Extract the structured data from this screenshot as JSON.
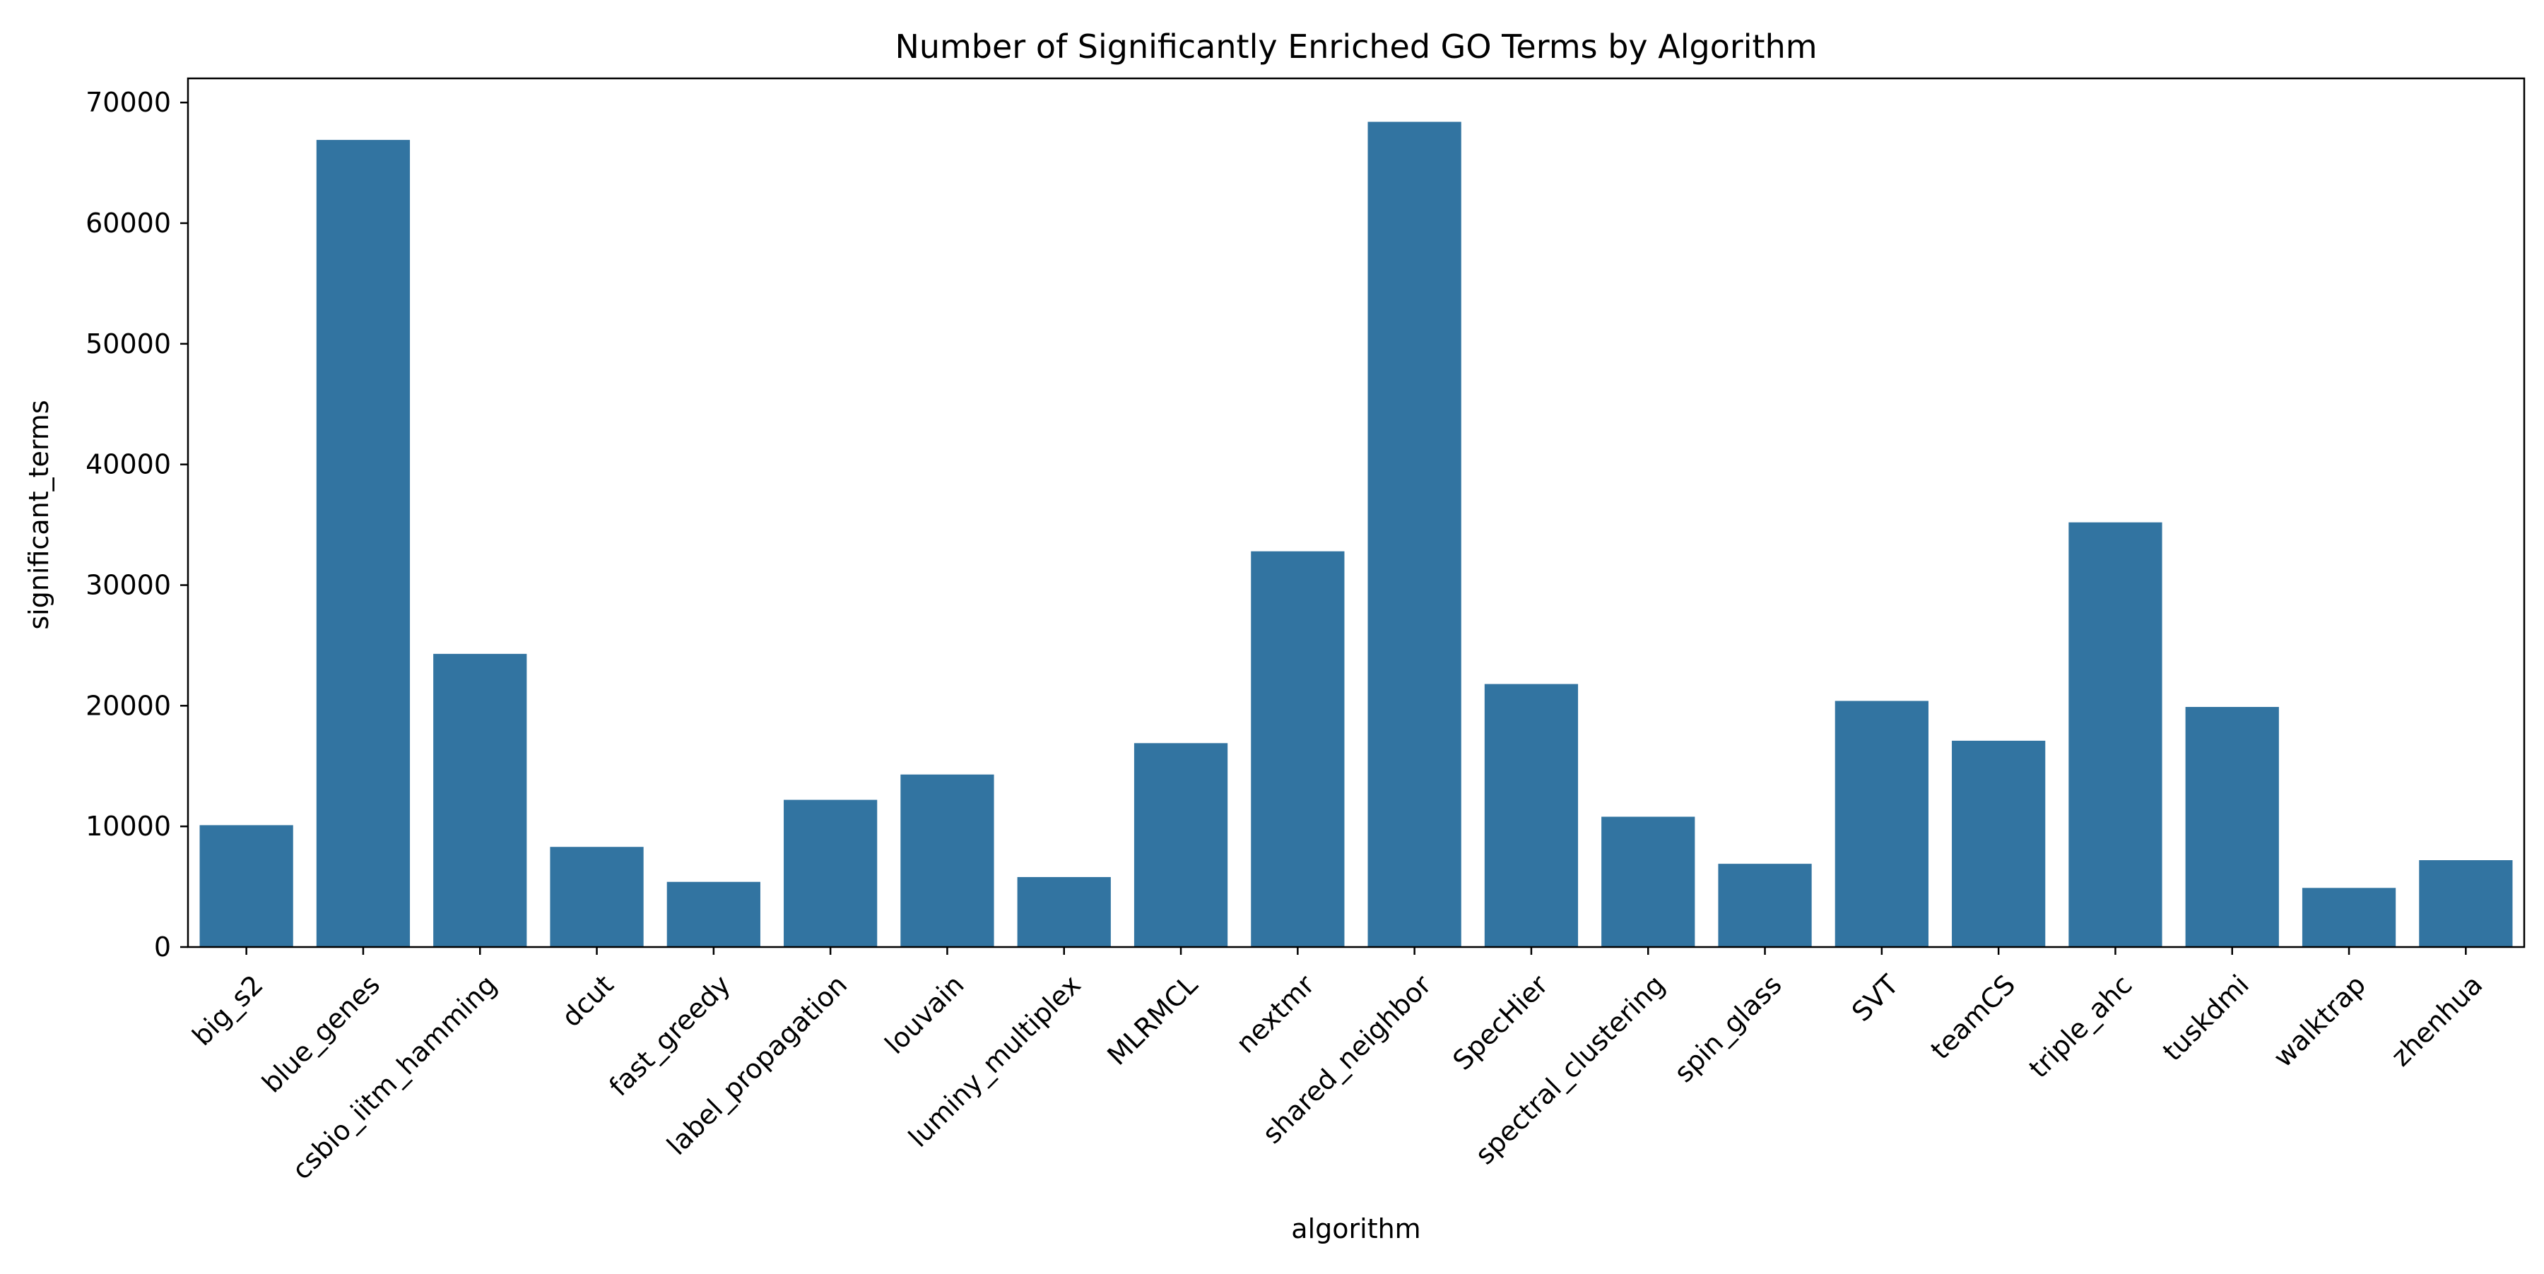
{
  "chart_data": {
    "type": "bar",
    "title": "Number of Significantly Enriched GO Terms by Algorithm",
    "xlabel": "algorithm",
    "ylabel": "significant_terms",
    "ylim": [
      0,
      72000
    ],
    "yticks": [
      0,
      10000,
      20000,
      30000,
      40000,
      50000,
      60000,
      70000
    ],
    "grid": false,
    "legend": "none",
    "bar_color": "#3274a1",
    "categories": [
      "big_s2",
      "blue_genes",
      "csbio_iitm_hamming",
      "dcut",
      "fast_greedy",
      "label_propagation",
      "louvain",
      "luminy_multiplex",
      "MLRMCL",
      "nextmr",
      "shared_neighbor",
      "SpecHier",
      "spectral_clustering",
      "spin_glass",
      "SVT",
      "teamCS",
      "triple_ahc",
      "tuskdmi",
      "walktrap",
      "zhenhua"
    ],
    "values": [
      10100,
      66900,
      24300,
      8300,
      5400,
      12200,
      14300,
      5800,
      16900,
      32800,
      68400,
      21800,
      10800,
      6900,
      20400,
      17100,
      35200,
      19900,
      4900,
      7200
    ]
  }
}
